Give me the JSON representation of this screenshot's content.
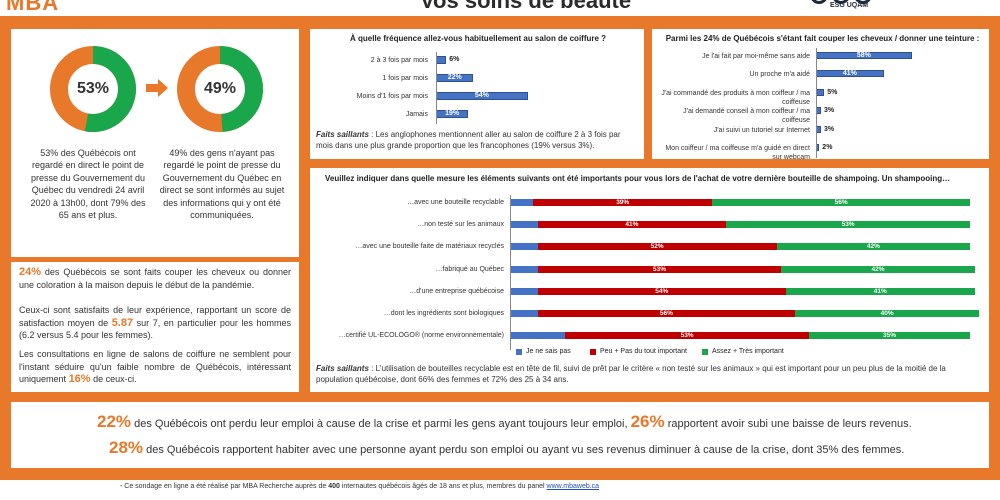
{
  "header": {
    "logo": "MBA",
    "title": "Vos soins de beauté",
    "partner_logo": "ESG UQAM"
  },
  "donut_left": {
    "percent_value": 53,
    "label": "53%",
    "text": "53% des Québécois ont regardé en direct le point de presse du Gouvernement du Québec du vendredi 24 avril 2020 à 13h00, dont 79% des 65 ans et plus.",
    "colors": {
      "main": "#1aa64a",
      "rest": "#e8782a"
    }
  },
  "donut_right": {
    "percent_value": 49,
    "label": "49%",
    "text": "49% des gens n'ayant pas regardé le point de presse du Gouvernement du Québec en direct se sont informés au sujet des informations qui y ont été communiquées.",
    "colors": {
      "main": "#1aa64a",
      "rest": "#e8782a"
    }
  },
  "left_text": {
    "p1_hl": "24%",
    "p1": "des Québécois se sont faits couper les cheveux ou donner une coloration à la maison depuis le début de la pandémie.",
    "p2_a": "Ceux-ci sont satisfaits de leur expérience, rapportant un score de satisfaction moyen de",
    "p2_hl": "5.87",
    "p2_b": "sur 7, en particulier pour les hommes (6.2 versus 5.4 pour les femmes).",
    "p3_a": "Les consultations en ligne de salons de coiffure ne semblent pour l'instant séduire qu'un faible nombre de Québécois, intéressant uniquement",
    "p3_hl": "16%",
    "p3_b": "de ceux-ci."
  },
  "freq_notes": {
    "label": "Faits saillants",
    "text": " : Les anglophones mentionnent aller au salon de coiffure 2 à 3 fois par mois dans une plus grande proportion que les francophones (19% versus 3%)."
  },
  "stack_notes": {
    "label": "Faits saillants",
    "text": " : L'utilisation de bouteilles recyclable est en tête de fil, suivi de prêt par le critère « non testé sur les animaux » qui est important pour un peu plus de la moitié de la population québécoise, dont 66% des femmes et 72% des 25 à 34 ans."
  },
  "chart_data": [
    {
      "type": "bar",
      "orientation": "horizontal",
      "title": "À quelle fréquence allez-vous habituellement au salon de coiffure ?",
      "categories": [
        "2 à 3 fois par mois",
        "1 fois par mois",
        "Moins d'1 fois par mois",
        "Jamais"
      ],
      "values": [
        6,
        22,
        54,
        19
      ],
      "value_labels": [
        "6%",
        "22%",
        "54%",
        "19%"
      ],
      "unit": "%",
      "xlim": [
        0,
        100
      ],
      "color": "#4472c4",
      "grid": false
    },
    {
      "type": "bar",
      "orientation": "horizontal",
      "title": "Parmi les 24% de Québécois s'étant fait couper les cheveux / donner une teinture :",
      "categories": [
        "Je l'ai fait par moi-même sans aide",
        "Un proche m'a aidé",
        "J'ai commandé des produits à mon coiffeur / ma coiffeuse",
        "J'ai demandé conseil à mon coiffeur / ma coiffeuse",
        "J'ai suivi un tutoriel sur Internet",
        "Mon coiffeur / ma coiffeuse m'a guidé en direct sur webcam"
      ],
      "values": [
        58,
        41,
        5,
        3,
        3,
        2
      ],
      "value_labels": [
        "58%",
        "41%",
        "5%",
        "3%",
        "3%",
        "2%"
      ],
      "unit": "%",
      "xlim": [
        0,
        100
      ],
      "color": "#4472c4",
      "grid": false
    },
    {
      "type": "bar",
      "orientation": "horizontal",
      "stacked": true,
      "title": "Veuillez indiquer dans quelle mesure les éléments suivants ont été importants pour vous lors de l'achat de votre dernière bouteille de shampoing. Un shampooing…",
      "categories": [
        "…avec une bouteille recyclable",
        "…non testé sur les animaux",
        "…avec une bouteille faite de matériaux recyclés",
        "…fabriqué au Québec",
        "…d'une entreprise québécoise",
        "…dont les ingrédients sont biologiques",
        "…certifié UL-ECOLOGO® (norme environnementale)"
      ],
      "series": [
        {
          "name": "Je ne sais pas",
          "color": "#4472c4",
          "values": [
            5,
            6,
            6,
            6,
            6,
            6,
            12
          ]
        },
        {
          "name": "Peu + Pas du tout important",
          "color": "#c00000",
          "values": [
            39,
            41,
            52,
            53,
            54,
            56,
            53
          ]
        },
        {
          "name": "Assez + Très important",
          "color": "#1aa64a",
          "values": [
            56,
            53,
            42,
            42,
            41,
            40,
            35
          ]
        }
      ],
      "value_labels": {
        "Peu + Pas du tout important": [
          "39%",
          "41%",
          "52%",
          "53%",
          "54%",
          "56%",
          "53%"
        ],
        "Assez + Très important": [
          "56%",
          "53%",
          "42%",
          "42%",
          "41%",
          "40%",
          "35%"
        ]
      },
      "xlim": [
        0,
        100
      ],
      "legend": "bottom",
      "grid": false
    }
  ],
  "bottom": {
    "l1_hl1": "22%",
    "l1_a": "des Québécois ont perdu leur emploi à cause de la crise et parmi les gens ayant toujours leur emploi,",
    "l1_hl2": "26%",
    "l1_b": "rapportent avoir subi une baisse de leurs revenus.",
    "l2_hl": "28%",
    "l2": "des Québécois rapportent habiter avec une personne ayant perdu son emploi ou ayant vu ses revenus diminuer à cause de la crise, dont 35% des femmes."
  },
  "footer": {
    "line1_a": "-    Ce sondage en ligne a été réalisé par MBA Recherche auprès de",
    "line1_hl": "400",
    "line1_b": "internautes québécois âgés de 18 ans et plus, membres du panel",
    "link": "www.mbaweb.ca"
  }
}
